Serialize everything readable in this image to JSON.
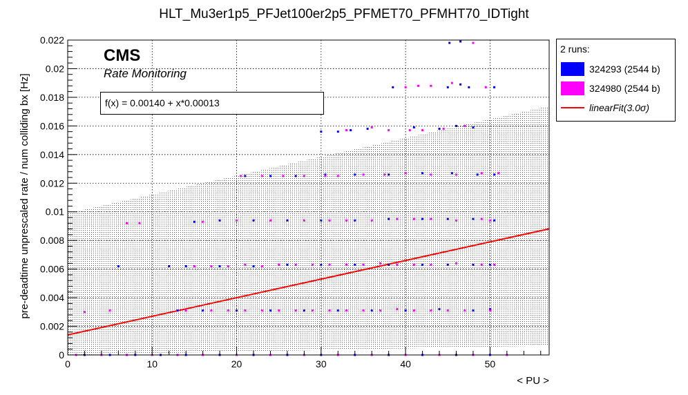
{
  "title": "HLT_Mu3er1p5_PFJet100er2p5_PFMET70_PFMHT70_IDTight",
  "cms_label": "CMS",
  "cms_sublabel": "Rate Monitoring",
  "fit_text": "f(x) = 0.00140 + x*0.00013",
  "legend": {
    "header": "2 runs:",
    "entries": [
      {
        "label": "324293 (2544 b)",
        "color": "#0000ff",
        "kind": "box"
      },
      {
        "label": "324980 (2544 b)",
        "color": "#ff00ff",
        "kind": "box"
      },
      {
        "label": "linearFit(3.0σ)",
        "color": "#ff0000",
        "kind": "line"
      }
    ]
  },
  "chart_data": {
    "type": "scatter",
    "title": "HLT_Mu3er1p5_PFJet100er2p5_PFMET70_PFMHT70_IDTight",
    "xlabel": "< PU >",
    "ylabel": "pre-deadtime unprescaled rate / num colliding bx [Hz]",
    "xlim": [
      0,
      57
    ],
    "ylim": [
      0,
      0.022
    ],
    "x_ticks": [
      "0",
      "10",
      "20",
      "30",
      "40",
      "50"
    ],
    "x_tick_values": [
      0,
      10,
      20,
      30,
      40,
      50
    ],
    "y_ticks": [
      "0",
      "0.002",
      "0.004",
      "0.006",
      "0.008",
      "0.01",
      "0.012",
      "0.014",
      "0.016",
      "0.018",
      "0.02",
      "0.022"
    ],
    "y_tick_values": [
      0,
      0.002,
      0.004,
      0.006,
      0.008,
      0.01,
      0.012,
      0.014,
      0.016,
      0.018,
      0.02,
      0.022
    ],
    "grid": true,
    "legend_position": "top-right-outside",
    "fit": {
      "name": "linearFit",
      "intercept": 0.0014,
      "slope": 0.00013,
      "x_range": [
        0,
        57
      ],
      "color": "#ff0000"
    },
    "band": {
      "sigma": 3.0,
      "lower_at_x0": 0.0,
      "upper_at_x0": 0.0099,
      "upper_at_xmax": 0.0174,
      "lower_at_xmax": 0.00065
    },
    "series": [
      {
        "name": "324293 (2544 b)",
        "color": "#0000ff",
        "points": [
          [
            45.2,
            0.0218
          ],
          [
            46.5,
            0.0219
          ],
          [
            38.5,
            0.0187
          ],
          [
            45.0,
            0.0187
          ],
          [
            46.5,
            0.0189
          ],
          [
            47.5,
            0.0187
          ],
          [
            50.5,
            0.0187
          ],
          [
            30.0,
            0.0156
          ],
          [
            32.0,
            0.0156
          ],
          [
            33.5,
            0.0157
          ],
          [
            35.5,
            0.0158
          ],
          [
            41.0,
            0.0159
          ],
          [
            44.0,
            0.0158
          ],
          [
            46.0,
            0.016
          ],
          [
            48.0,
            0.0159
          ],
          [
            21.0,
            0.0125
          ],
          [
            24.0,
            0.0125
          ],
          [
            27.0,
            0.0125
          ],
          [
            30.5,
            0.0126
          ],
          [
            34.0,
            0.0126
          ],
          [
            38.0,
            0.0126
          ],
          [
            42.0,
            0.0127
          ],
          [
            45.5,
            0.0127
          ],
          [
            48.5,
            0.0126
          ],
          [
            50.5,
            0.0126
          ],
          [
            15.0,
            0.0093
          ],
          [
            18.0,
            0.0094
          ],
          [
            22.0,
            0.0094
          ],
          [
            26.0,
            0.0094
          ],
          [
            30.0,
            0.0094
          ],
          [
            34.0,
            0.0094
          ],
          [
            38.0,
            0.0095
          ],
          [
            42.0,
            0.0095
          ],
          [
            45.0,
            0.0095
          ],
          [
            48.0,
            0.0095
          ],
          [
            50.5,
            0.0094
          ],
          [
            6.0,
            0.0062
          ],
          [
            12.0,
            0.0062
          ],
          [
            14.0,
            0.0062
          ],
          [
            18.0,
            0.0062
          ],
          [
            22.0,
            0.0062
          ],
          [
            26.0,
            0.0063
          ],
          [
            30.0,
            0.0063
          ],
          [
            34.0,
            0.0063
          ],
          [
            38.0,
            0.0063
          ],
          [
            42.0,
            0.0063
          ],
          [
            45.0,
            0.0063
          ],
          [
            48.0,
            0.0063
          ],
          [
            50.0,
            0.0063
          ],
          [
            13.0,
            0.0031
          ],
          [
            16.0,
            0.0031
          ],
          [
            20.0,
            0.0031
          ],
          [
            24.0,
            0.0031
          ],
          [
            28.0,
            0.0031
          ],
          [
            32.0,
            0.0031
          ],
          [
            36.0,
            0.0031
          ],
          [
            40.0,
            0.0031
          ],
          [
            44.0,
            0.0032
          ],
          [
            48.0,
            0.0031
          ],
          [
            50.0,
            0.0032
          ],
          [
            2.0,
            0.0
          ],
          [
            5.0,
            0.0
          ],
          [
            8.0,
            0.0
          ],
          [
            11.0,
            0.0
          ],
          [
            14.0,
            0.0
          ],
          [
            18.0,
            0.0
          ],
          [
            22.0,
            0.0
          ],
          [
            26.0,
            0.0
          ],
          [
            30.0,
            0.0
          ],
          [
            34.0,
            0.0
          ],
          [
            38.0,
            0.0
          ],
          [
            42.0,
            0.0
          ],
          [
            46.0,
            0.0
          ],
          [
            50.0,
            0.0
          ]
        ]
      },
      {
        "name": "324980 (2544 b)",
        "color": "#ff00ff",
        "points": [
          [
            48.0,
            0.0218
          ],
          [
            40.0,
            0.0187
          ],
          [
            41.5,
            0.0188
          ],
          [
            43.0,
            0.0188
          ],
          [
            45.5,
            0.019
          ],
          [
            49.5,
            0.0187
          ],
          [
            33.0,
            0.0157
          ],
          [
            36.0,
            0.0159
          ],
          [
            38.0,
            0.0157
          ],
          [
            40.5,
            0.0157
          ],
          [
            42.0,
            0.0157
          ],
          [
            44.5,
            0.0158
          ],
          [
            47.0,
            0.016
          ],
          [
            20.5,
            0.0125
          ],
          [
            23.0,
            0.0125
          ],
          [
            25.5,
            0.0125
          ],
          [
            28.0,
            0.0125
          ],
          [
            30.5,
            0.0125
          ],
          [
            32.0,
            0.0125
          ],
          [
            35.0,
            0.0126
          ],
          [
            37.5,
            0.0126
          ],
          [
            40.0,
            0.0127
          ],
          [
            43.0,
            0.0126
          ],
          [
            46.0,
            0.0126
          ],
          [
            49.0,
            0.0127
          ],
          [
            51.0,
            0.0127
          ],
          [
            7.0,
            0.0092
          ],
          [
            8.5,
            0.0092
          ],
          [
            16.0,
            0.0093
          ],
          [
            20.0,
            0.0094
          ],
          [
            24.0,
            0.0094
          ],
          [
            28.0,
            0.0094
          ],
          [
            31.0,
            0.0094
          ],
          [
            33.0,
            0.0094
          ],
          [
            36.0,
            0.0094
          ],
          [
            39.0,
            0.0095
          ],
          [
            41.0,
            0.0095
          ],
          [
            43.0,
            0.0095
          ],
          [
            46.0,
            0.0094
          ],
          [
            49.0,
            0.0095
          ],
          [
            50.0,
            0.0094
          ],
          [
            15.0,
            0.0062
          ],
          [
            17.0,
            0.0062
          ],
          [
            19.0,
            0.0062
          ],
          [
            21.0,
            0.0063
          ],
          [
            23.0,
            0.0062
          ],
          [
            25.0,
            0.0063
          ],
          [
            27.0,
            0.0063
          ],
          [
            29.0,
            0.0063
          ],
          [
            31.0,
            0.0063
          ],
          [
            33.0,
            0.0063
          ],
          [
            35.0,
            0.0063
          ],
          [
            37.0,
            0.0064
          ],
          [
            39.0,
            0.0063
          ],
          [
            41.0,
            0.0063
          ],
          [
            43.0,
            0.0063
          ],
          [
            46.0,
            0.0064
          ],
          [
            49.0,
            0.0063
          ],
          [
            50.5,
            0.0063
          ],
          [
            2.0,
            0.003
          ],
          [
            5.0,
            0.0031
          ],
          [
            14.0,
            0.0031
          ],
          [
            17.0,
            0.0031
          ],
          [
            19.0,
            0.0031
          ],
          [
            21.0,
            0.0031
          ],
          [
            23.0,
            0.0031
          ],
          [
            25.0,
            0.0031
          ],
          [
            27.0,
            0.0031
          ],
          [
            29.0,
            0.0031
          ],
          [
            31.0,
            0.0031
          ],
          [
            33.0,
            0.0031
          ],
          [
            35.0,
            0.0031
          ],
          [
            37.0,
            0.0031
          ],
          [
            39.0,
            0.0032
          ],
          [
            41.0,
            0.0031
          ],
          [
            43.0,
            0.0031
          ],
          [
            45.0,
            0.0031
          ],
          [
            47.0,
            0.0031
          ],
          [
            50.0,
            0.0031
          ],
          [
            1.0,
            0.0
          ],
          [
            4.0,
            0.0
          ],
          [
            7.0,
            0.0
          ],
          [
            10.0,
            0.0
          ],
          [
            13.0,
            0.0
          ],
          [
            16.0,
            0.0
          ],
          [
            20.0,
            0.0
          ],
          [
            24.0,
            0.0
          ],
          [
            28.0,
            0.0
          ],
          [
            32.0,
            0.0
          ],
          [
            36.0,
            0.0
          ],
          [
            40.0,
            0.0
          ],
          [
            44.0,
            0.0
          ],
          [
            48.0,
            0.0
          ],
          [
            52.0,
            0.0
          ]
        ]
      }
    ]
  }
}
